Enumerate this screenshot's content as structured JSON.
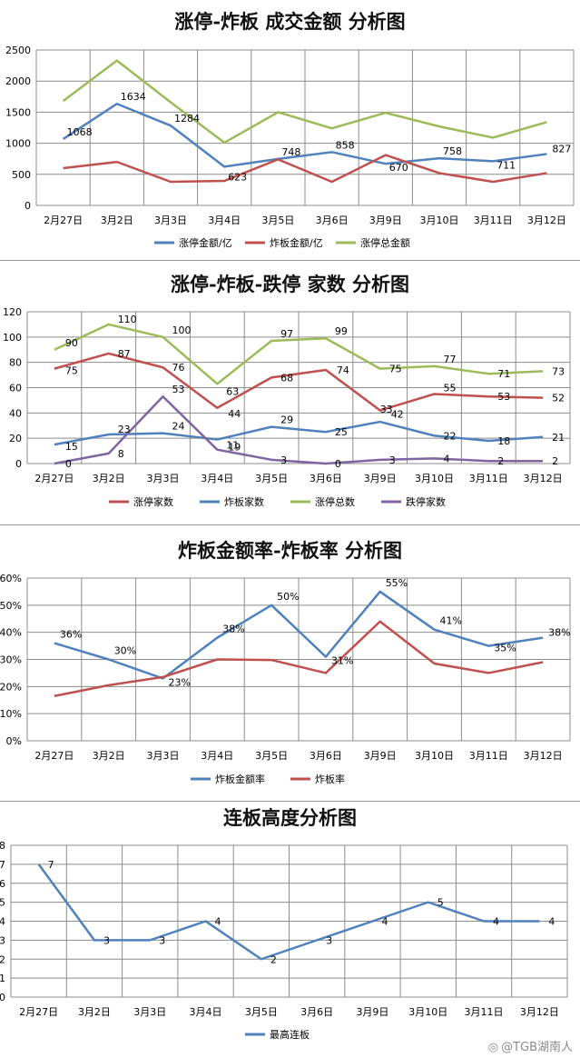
{
  "chart_data": [
    {
      "type": "line",
      "title": "涨停-炸板 成交金额 分析图",
      "categories": [
        "2月27日",
        "3月2日",
        "3月3日",
        "3月4日",
        "3月5日",
        "3月6日",
        "3月9日",
        "3月10日",
        "3月11日",
        "3月12日"
      ],
      "ylim": [
        0,
        2500
      ],
      "yticks": [
        0,
        500,
        1000,
        1500,
        2000,
        2500
      ],
      "tick_format": "plain",
      "grid": true,
      "legend": "bottom",
      "series": [
        {
          "name": "涨停金额/亿",
          "color": "#4f81bd",
          "values": [
            1068,
            1634,
            1284,
            623,
            748,
            858,
            670,
            758,
            711,
            827
          ],
          "labels": [
            "1068",
            "1634",
            "1284",
            "623",
            "748",
            "858",
            "670",
            "758",
            "711",
            "827"
          ]
        },
        {
          "name": "炸板金额/亿",
          "color": "#c0504d",
          "values": [
            600,
            700,
            380,
            395,
            740,
            380,
            810,
            520,
            380,
            520
          ],
          "labels": []
        },
        {
          "name": "涨停总金额",
          "color": "#9bbb59",
          "values": [
            1680,
            2330,
            1660,
            1010,
            1500,
            1240,
            1490,
            1270,
            1090,
            1340
          ],
          "labels": []
        }
      ]
    },
    {
      "type": "line",
      "title": "涨停-炸板-跌停 家数 分析图",
      "categories": [
        "2月27日",
        "3月2日",
        "3月3日",
        "3月4日",
        "3月5日",
        "3月6日",
        "3月9日",
        "3月10日",
        "3月11日",
        "3月12日"
      ],
      "ylim": [
        0,
        120
      ],
      "yticks": [
        0,
        20,
        40,
        60,
        80,
        100,
        120
      ],
      "tick_format": "plain",
      "grid": true,
      "legend": "bottom",
      "series": [
        {
          "name": "涨停家数",
          "color": "#c0504d",
          "values": [
            75,
            87,
            76,
            44,
            68,
            74,
            42,
            55,
            53,
            52
          ],
          "labels": [
            "75",
            "87",
            "76",
            "44",
            "68",
            "74",
            "42",
            "55",
            "53",
            "52"
          ]
        },
        {
          "name": "炸板家数",
          "color": "#4f81bd",
          "values": [
            15,
            23,
            24,
            19,
            29,
            25,
            33,
            22,
            18,
            21
          ],
          "labels": [
            "15",
            "23",
            "24",
            "19",
            "29",
            "25",
            "33",
            "22",
            "18",
            "21"
          ]
        },
        {
          "name": "涨停总数",
          "color": "#9bbb59",
          "values": [
            90,
            110,
            100,
            63,
            97,
            99,
            75,
            77,
            71,
            73
          ],
          "labels": [
            "90",
            "110",
            "100",
            "63",
            "97",
            "99",
            "75",
            "77",
            "71",
            "73"
          ]
        },
        {
          "name": "跌停家数",
          "color": "#8064a2",
          "values": [
            0,
            8,
            53,
            11,
            3,
            0,
            3,
            4,
            2,
            2
          ],
          "labels": [
            "0",
            "8",
            "53",
            "11",
            "3",
            "0",
            "3",
            "4",
            "2",
            "2"
          ]
        }
      ]
    },
    {
      "type": "line",
      "title": "炸板金额率-炸板率 分析图",
      "categories": [
        "2月27日",
        "3月2日",
        "3月3日",
        "3月4日",
        "3月5日",
        "3月6日",
        "3月9日",
        "3月10日",
        "3月11日",
        "3月12日"
      ],
      "ylim": [
        0,
        60
      ],
      "yticks": [
        0,
        10,
        20,
        30,
        40,
        50,
        60
      ],
      "tick_format": "percent",
      "grid": true,
      "legend": "bottom",
      "series": [
        {
          "name": "炸板金额率",
          "color": "#4f81bd",
          "values": [
            36,
            30,
            23,
            38,
            50,
            31,
            55,
            41,
            35,
            38
          ],
          "labels": [
            "36%",
            "30%",
            "23%",
            "38%",
            "50%",
            "31%",
            "55%",
            "41%",
            "35%",
            "38%"
          ]
        },
        {
          "name": "炸板率",
          "color": "#c0504d",
          "values": [
            16.5,
            20.5,
            23.5,
            30,
            29.8,
            25,
            44,
            28.5,
            25,
            29
          ],
          "labels": []
        }
      ]
    },
    {
      "type": "line",
      "title": "连板高度分析图",
      "categories": [
        "2月27日",
        "3月2日",
        "3月3日",
        "3月4日",
        "3月5日",
        "3月6日",
        "3月9日",
        "3月10日",
        "3月11日",
        "3月12日"
      ],
      "ylim": [
        0,
        8
      ],
      "yticks": [
        0,
        1,
        2,
        3,
        4,
        5,
        6,
        7,
        8
      ],
      "tick_format": "plain",
      "grid": true,
      "legend": "bottom",
      "series": [
        {
          "name": "最高连板",
          "color": "#4f81bd",
          "values": [
            7,
            3,
            3,
            4,
            2,
            3,
            4,
            5,
            4,
            4
          ],
          "labels": [
            "7",
            "3",
            "3",
            "4",
            "2",
            "3",
            "4",
            "5",
            "4",
            "4"
          ]
        }
      ]
    }
  ],
  "watermark": "@TGB湖南人"
}
